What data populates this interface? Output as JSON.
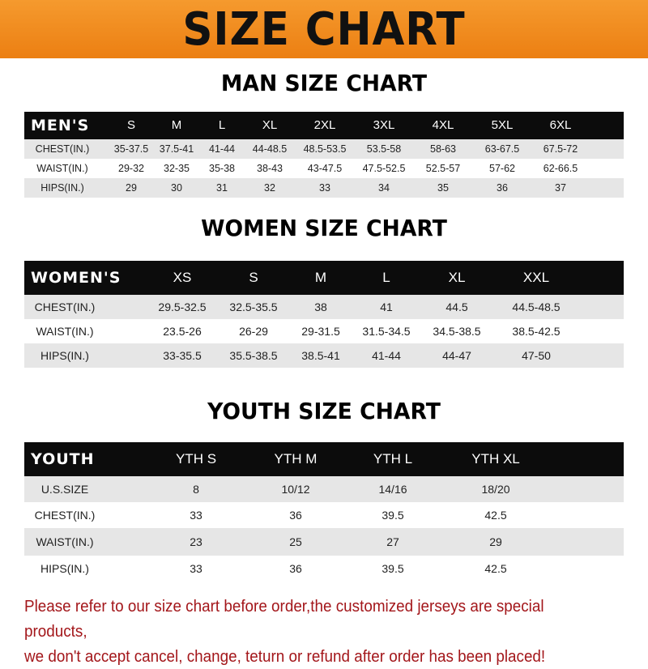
{
  "banner_title": "SIZE CHART",
  "men": {
    "title": "MAN SIZE CHART",
    "header": [
      "MEN'S",
      "S",
      "M",
      "L",
      "XL",
      "2XL",
      "3XL",
      "4XL",
      "5XL",
      "6XL"
    ],
    "rows": [
      [
        "CHEST(IN.)",
        "35-37.5",
        "37.5-41",
        "41-44",
        "44-48.5",
        "48.5-53.5",
        "53.5-58",
        "58-63",
        "63-67.5",
        "67.5-72"
      ],
      [
        "WAIST(IN.)",
        "29-32",
        "32-35",
        "35-38",
        "38-43",
        "43-47.5",
        "47.5-52.5",
        "52.5-57",
        "57-62",
        "62-66.5"
      ],
      [
        "HIPS(IN.)",
        "29",
        "30",
        "31",
        "32",
        "33",
        "34",
        "35",
        "36",
        "37"
      ]
    ]
  },
  "women": {
    "title": "WOMEN SIZE CHART",
    "header": [
      "WOMEN'S",
      "XS",
      "S",
      "M",
      "L",
      "XL",
      "XXL"
    ],
    "rows": [
      [
        "CHEST(IN.)",
        "29.5-32.5",
        "32.5-35.5",
        "38",
        "41",
        "44.5",
        "44.5-48.5"
      ],
      [
        "WAIST(IN.)",
        "23.5-26",
        "26-29",
        "29-31.5",
        "31.5-34.5",
        "34.5-38.5",
        "38.5-42.5"
      ],
      [
        "HIPS(IN.)",
        "33-35.5",
        "35.5-38.5",
        "38.5-41",
        "41-44",
        "44-47",
        "47-50"
      ]
    ]
  },
  "youth": {
    "title": "YOUTH SIZE CHART",
    "header": [
      "YOUTH",
      "YTH S",
      "YTH M",
      "YTH L",
      "YTH XL"
    ],
    "rows": [
      [
        "U.S.SIZE",
        "8",
        "10/12",
        "14/16",
        "18/20"
      ],
      [
        "CHEST(IN.)",
        "33",
        "36",
        "39.5",
        "42.5"
      ],
      [
        "WAIST(IN.)",
        "23",
        "25",
        "27",
        "29"
      ],
      [
        "HIPS(IN.)",
        "33",
        "36",
        "39.5",
        "42.5"
      ]
    ]
  },
  "note": {
    "line1": "Please refer to our size chart before order,the customized jerseys are special products,",
    "line2": "we don't accept cancel, change, teturn or refund after order has been placed!"
  },
  "colors": {
    "banner": "#f08a1e",
    "header_row": "#0c0c0c",
    "note": "#a3161a",
    "stripe": "#e6e6e6"
  }
}
